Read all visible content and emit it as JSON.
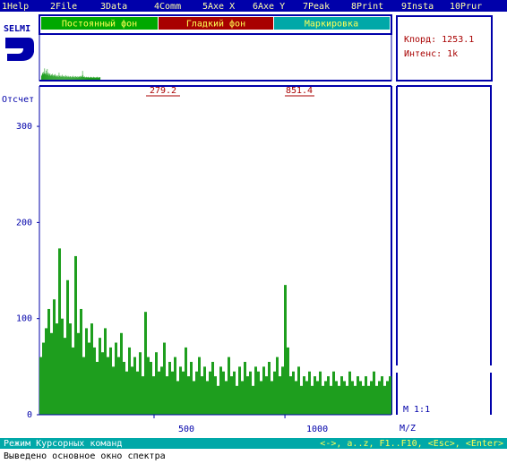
{
  "menu": [
    "1Help",
    "2File",
    "3Data",
    "4Comm",
    "5Axe X",
    "6Axe Y",
    "7Peak",
    "8Print",
    "9Insta",
    "10Prur"
  ],
  "buttons": [
    "Постоянный фон",
    "Гладкий фон",
    "Маркировка"
  ],
  "logo": "SELMI",
  "cursor_panel": {
    "coord": "Кпорд: 1253.1",
    "intensity": "Интенс: 1k"
  },
  "chart_data": {
    "type": "bar",
    "y_label": "Отсчет",
    "x_label": "M/Z",
    "scale_label": "M 1:1",
    "markers": [
      "279.2",
      "851.4"
    ],
    "color": "#1e9e1e",
    "values": [
      60,
      75,
      90,
      110,
      85,
      120,
      95,
      173,
      100,
      80,
      140,
      95,
      70,
      165,
      85,
      110,
      60,
      90,
      75,
      95,
      70,
      55,
      80,
      65,
      90,
      60,
      70,
      50,
      75,
      60,
      85,
      55,
      45,
      70,
      50,
      60,
      45,
      65,
      40,
      107,
      60,
      55,
      40,
      65,
      45,
      50,
      75,
      40,
      55,
      45,
      60,
      35,
      50,
      45,
      70,
      40,
      55,
      35,
      45,
      60,
      40,
      50,
      35,
      45,
      55,
      40,
      30,
      50,
      45,
      35,
      60,
      40,
      45,
      30,
      50,
      35,
      55,
      40,
      45,
      30,
      50,
      45,
      35,
      50,
      40,
      55,
      35,
      45,
      60,
      40,
      50,
      135,
      70,
      40,
      45,
      35,
      50,
      30,
      40,
      35,
      45,
      30,
      40,
      35,
      45,
      30,
      35,
      40,
      30,
      45,
      35,
      30,
      40,
      35,
      30,
      45,
      35,
      30,
      40,
      35,
      30,
      40,
      30,
      35,
      45,
      30,
      35,
      40,
      30,
      35,
      40
    ],
    "xlim": [
      62,
      1407
    ],
    "xticks": [
      500,
      1000
    ],
    "ylim": [
      0,
      342
    ],
    "yticks": [
      0,
      100,
      200,
      300
    ]
  },
  "status": {
    "mode": "Режим Курсорных команд",
    "keys": "<->, a..z, F1..F10, <Esc>, <Enter>",
    "message": "Выведено основное окно спектра"
  }
}
